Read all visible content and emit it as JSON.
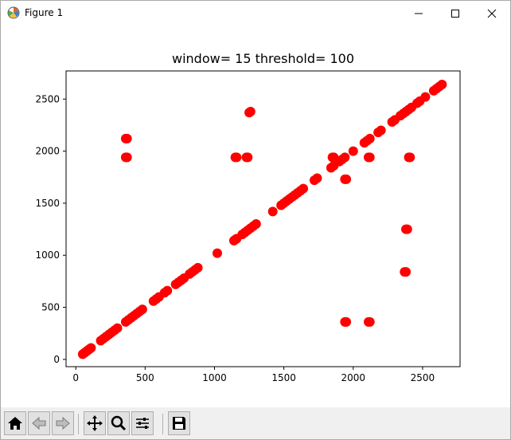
{
  "window": {
    "title": "Figure 1",
    "icons": {
      "app": "matplotlib-icon",
      "minimize": "minimize-icon",
      "maximize": "maximize-icon",
      "close": "close-icon"
    }
  },
  "toolbar": {
    "buttons": [
      {
        "icon": "home-icon"
      },
      {
        "icon": "back-arrow-icon"
      },
      {
        "icon": "forward-arrow-icon"
      },
      {
        "icon": "pan-icon"
      },
      {
        "icon": "zoom-icon"
      },
      {
        "icon": "subplots-icon"
      },
      {
        "icon": "save-icon"
      }
    ]
  },
  "chart_data": {
    "type": "scatter",
    "title": "window= 15  threshold= 100",
    "xlabel": "",
    "ylabel": "",
    "xlim": [
      -70,
      2770
    ],
    "ylim": [
      -70,
      2770
    ],
    "xticks": [
      0,
      500,
      1000,
      1500,
      2000,
      2500
    ],
    "yticks": [
      0,
      500,
      1000,
      1500,
      2000,
      2500
    ],
    "xtick_labels": [
      "0",
      "500",
      "1000",
      "1500",
      "2000",
      "2500"
    ],
    "ytick_labels": [
      "0",
      "500",
      "1000",
      "1500",
      "2000",
      "2500"
    ],
    "grid": false,
    "marker_color": "#ff0000",
    "series": [
      {
        "x": [
          50,
          60,
          70,
          80,
          90,
          100,
          110,
          180,
          200,
          220,
          240,
          260,
          280,
          300,
          360,
          380,
          400,
          420,
          440,
          460,
          480,
          560,
          580,
          600,
          640,
          660,
          720,
          740,
          760,
          780,
          820,
          840,
          860,
          880,
          1020,
          1140,
          1150,
          1160,
          1200,
          1220,
          1240,
          1260,
          1280,
          1300,
          1420,
          1480,
          1500,
          1520,
          1540,
          1560,
          1580,
          1600,
          1620,
          1640,
          1720,
          1740,
          1840,
          1860,
          1900,
          1920,
          1940,
          2000,
          2080,
          2100,
          2120,
          2180,
          2200,
          2280,
          2300,
          2340,
          2360,
          2380,
          2400,
          2420,
          2460,
          2480,
          2520,
          2580,
          2600,
          2620,
          2640,
          360,
          370,
          360,
          370,
          1150,
          1160,
          1230,
          1240,
          1250,
          1260,
          1850,
          1860,
          1940,
          1950,
          2110,
          2120,
          2400,
          2410,
          2380,
          2390,
          2370,
          2380,
          1940,
          1950,
          2110,
          2120
        ],
        "y": [
          50,
          60,
          70,
          80,
          90,
          100,
          110,
          180,
          200,
          220,
          240,
          260,
          280,
          300,
          360,
          380,
          400,
          420,
          440,
          460,
          480,
          560,
          580,
          600,
          640,
          660,
          720,
          740,
          760,
          780,
          820,
          840,
          860,
          880,
          1020,
          1140,
          1150,
          1160,
          1200,
          1220,
          1240,
          1260,
          1280,
          1300,
          1420,
          1480,
          1500,
          1520,
          1540,
          1560,
          1580,
          1600,
          1620,
          1640,
          1720,
          1740,
          1840,
          1860,
          1900,
          1920,
          1940,
          2000,
          2080,
          2100,
          2120,
          2180,
          2200,
          2280,
          2300,
          2340,
          2360,
          2380,
          2400,
          2420,
          2460,
          2480,
          2520,
          2580,
          2600,
          2620,
          2640,
          1940,
          1940,
          2120,
          2120,
          1940,
          1940,
          1940,
          1940,
          2370,
          2380,
          1940,
          1940,
          1730,
          1730,
          1940,
          1940,
          1940,
          1940,
          1250,
          1250,
          840,
          840,
          360,
          360,
          360,
          360
        ]
      }
    ]
  }
}
